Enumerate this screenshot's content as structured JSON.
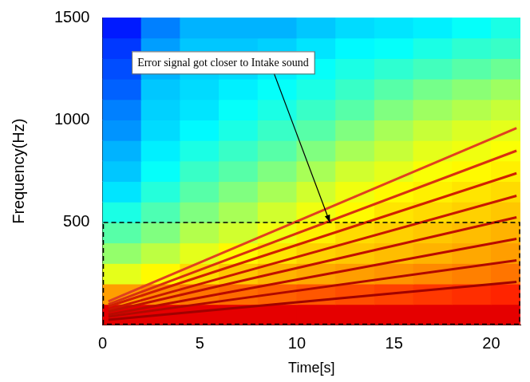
{
  "chart_data": {
    "type": "heatmap",
    "x_label": "Time[s]",
    "y_label": "Frequency(Hz)",
    "xlim": [
      0,
      21.5
    ],
    "xticks": [
      0,
      5,
      10,
      15,
      20
    ],
    "ylim": [
      0,
      1500
    ],
    "yticks": [
      500,
      1000,
      1500
    ],
    "grid": false,
    "cells": {
      "x": [
        0,
        2,
        4,
        6,
        8,
        10,
        12,
        14,
        16,
        18,
        20,
        21.5
      ],
      "y": [
        0,
        100,
        200,
        300,
        400,
        500,
        600,
        700,
        800,
        900,
        1000,
        1100,
        1200,
        1300,
        1400,
        1500
      ],
      "zlim": [
        0,
        10
      ],
      "values": [
        [
          9,
          9,
          9,
          9,
          9,
          9,
          9,
          9,
          9,
          9,
          9
        ],
        [
          7.2,
          7.4,
          7.6,
          7.7,
          7.8,
          7.9,
          8,
          8.1,
          8.2,
          8.3,
          8.4
        ],
        [
          6,
          6.3,
          6.6,
          6.8,
          7,
          7.1,
          7.2,
          7.3,
          7.4,
          7.5,
          7.6
        ],
        [
          5.2,
          5.6,
          6,
          6.3,
          6.5,
          6.7,
          6.8,
          6.9,
          7,
          7.1,
          7.2
        ],
        [
          4.6,
          5,
          5.5,
          5.8,
          6.1,
          6.4,
          6.6,
          6.7,
          6.8,
          6.9,
          7
        ],
        [
          4,
          4.5,
          5,
          5.4,
          5.8,
          6.1,
          6.3,
          6.5,
          6.6,
          6.7,
          6.8
        ],
        [
          3.5,
          4.1,
          4.6,
          5,
          5.4,
          5.8,
          6.1,
          6.3,
          6.4,
          6.5,
          6.6
        ],
        [
          3.2,
          3.8,
          4.3,
          4.6,
          5,
          5.4,
          5.8,
          6,
          6.2,
          6.3,
          6.4
        ],
        [
          3,
          3.6,
          4,
          4.3,
          4.6,
          5,
          5.4,
          5.7,
          6,
          6.1,
          6.2
        ],
        [
          2.7,
          3.4,
          3.7,
          4,
          4.3,
          4.6,
          5,
          5.4,
          5.7,
          5.9,
          6
        ],
        [
          2.5,
          3.3,
          3.5,
          3.8,
          4,
          4.3,
          4.6,
          5,
          5.3,
          5.5,
          5.7
        ],
        [
          2.2,
          3.2,
          3.4,
          3.6,
          3.8,
          4,
          4.3,
          4.6,
          4.9,
          5.1,
          5.3
        ],
        [
          2,
          3,
          3.3,
          3.4,
          3.6,
          3.8,
          4,
          4.2,
          4.4,
          4.6,
          4.8
        ],
        [
          1.8,
          2.8,
          3.2,
          3.2,
          3.3,
          3.5,
          3.7,
          3.8,
          4,
          4.2,
          4.3
        ],
        [
          1.5,
          2.5,
          3,
          3,
          3,
          3.2,
          3.4,
          3.5,
          3.6,
          3.8,
          4
        ]
      ]
    },
    "series": [
      {
        "type": "line",
        "color": "#a00000",
        "x": [
          0.3,
          21.3
        ],
        "values": [
          25,
          210
        ]
      },
      {
        "type": "line",
        "color": "#b00800",
        "x": [
          0.3,
          21.3
        ],
        "values": [
          40,
          315
        ]
      },
      {
        "type": "line",
        "color": "#b80a00",
        "x": [
          0.3,
          21.3
        ],
        "values": [
          50,
          420
        ]
      },
      {
        "type": "line",
        "color": "#c01000",
        "x": [
          0.3,
          21.3
        ],
        "values": [
          65,
          525
        ]
      },
      {
        "type": "line",
        "color": "#c81800",
        "x": [
          0.3,
          21.3
        ],
        "values": [
          75,
          630
        ]
      },
      {
        "type": "line",
        "color": "#d02000",
        "x": [
          0.3,
          21.3
        ],
        "values": [
          90,
          740
        ]
      },
      {
        "type": "line",
        "color": "#d83010",
        "x": [
          0.3,
          21.3
        ],
        "values": [
          100,
          850
        ]
      },
      {
        "type": "line",
        "color": "#e04020",
        "x": [
          0.3,
          21.3
        ],
        "values": [
          115,
          960
        ]
      }
    ],
    "highlight": {
      "x": [
        0,
        21.5
      ],
      "y": [
        0,
        500
      ]
    },
    "annotations": [
      {
        "text": "Error signal got closer to Intake sound",
        "point": [
          11.7,
          500
        ]
      }
    ]
  }
}
